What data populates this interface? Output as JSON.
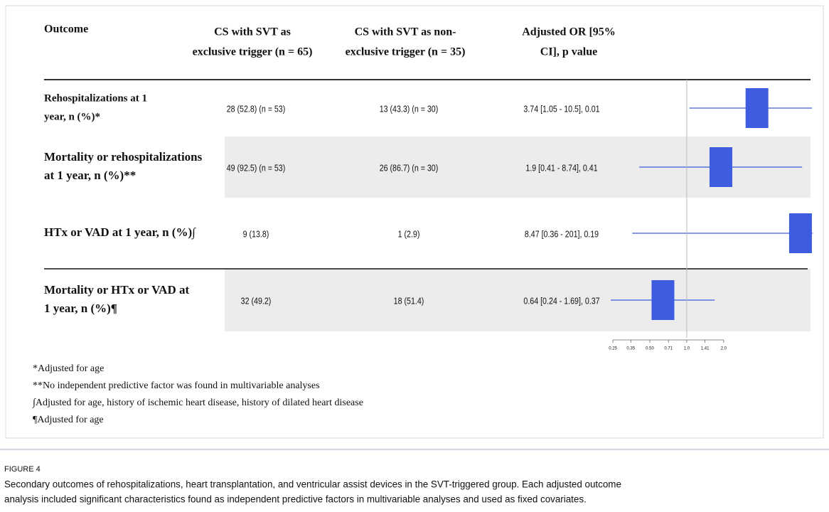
{
  "table": {
    "headers": [
      [
        "Outcome"
      ],
      [
        "CS with SVT as",
        "exclusive trigger (n = 65)"
      ],
      [
        "CS with SVT as non-",
        "exclusive trigger (n = 35)"
      ],
      [
        "Adjusted OR [95%",
        "CI], p value"
      ]
    ],
    "rows": [
      {
        "outcome": [
          "Rehospitalizations at 1",
          "year, n (%)*"
        ],
        "exclusive": "28 (52.8) (n = 53)",
        "non_exclusive": "13 (43.3) (n = 30)",
        "adjusted_or": "3.74 [1.05 - 10.5], 0.01"
      },
      {
        "outcome": [
          "Mortality or rehospitalizations",
          "at 1 year, n (%)**"
        ],
        "exclusive": "49 (92.5) (n = 53)",
        "non_exclusive": "26 (86.7) (n = 30)",
        "adjusted_or": "1.9 [0.41 - 8.74], 0.41"
      },
      {
        "outcome": [
          "HTx or VAD at 1 year, n (%)∫"
        ],
        "exclusive": "9 (13.8)",
        "non_exclusive": "1 (2.9)",
        "adjusted_or": "8.47 [0.36 - 201], 0.19"
      },
      {
        "outcome": [
          "Mortality or HTx or VAD at",
          "1 year, n (%)¶"
        ],
        "exclusive": "32 (49.2)",
        "non_exclusive": "18 (51.4)",
        "adjusted_or": "0.64 [0.24 - 1.69], 0.37"
      }
    ]
  },
  "chart_data": {
    "type": "forest",
    "values": [
      3.74,
      1.9,
      8.47,
      0.64
    ],
    "lower": [
      1.05,
      0.41,
      0.36,
      0.24
    ],
    "upper": [
      10.5,
      8.74,
      201,
      1.69
    ],
    "color": "#3d5ce0",
    "xlim": [
      0.24,
      10.5
    ],
    "log_scale": true,
    "reference": 1,
    "xticks": [
      0.25,
      0.35,
      {
        "value": 0.5,
        "label": "0.50"
      },
      0.71,
      {
        "value": 1,
        "label": "1.0"
      },
      1.41,
      {
        "value": 2,
        "label": "2.0"
      }
    ]
  },
  "footnotes": [
    "*Adjusted for age",
    "**No independent predictive factor was found in multivariable analyses",
    "∫Adjusted for age, history of ischemic heart disease, history of dilated heart disease",
    "¶Adjusted for age"
  ],
  "figure": {
    "label": "FIGURE 4",
    "caption": [
      "Secondary outcomes of rehospitalizations, heart transplantation, and ventricular assist devices in the SVT-triggered group. Each adjusted outcome",
      "analysis included significant characteristics found as independent predictive factors in multivariable analyses and used as fixed covariates."
    ]
  }
}
